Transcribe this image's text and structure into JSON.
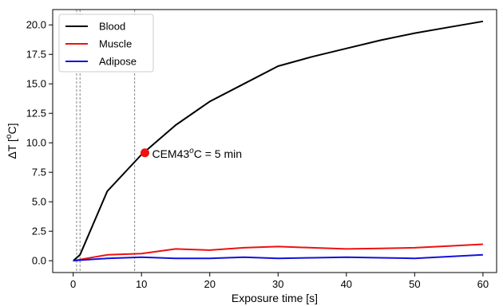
{
  "chart_data": {
    "type": "line",
    "xlabel": "Exposure time [s]",
    "ylabel_main": "ΔT [",
    "ylabel_sup": "o",
    "ylabel_tail": "C]",
    "xlim": [
      -3,
      62
    ],
    "ylim": [
      -1.0,
      21.3
    ],
    "xticks": [
      0,
      10,
      20,
      30,
      40,
      50,
      60
    ],
    "yticks": [
      0.0,
      2.5,
      5.0,
      7.5,
      10.0,
      12.5,
      15.0,
      17.5,
      20.0
    ],
    "ytick_labels": [
      "0.0",
      "2.5",
      "5.0",
      "7.5",
      "10.0",
      "12.5",
      "15.0",
      "17.5",
      "20.0"
    ],
    "grid": false,
    "legend_position": "top-left",
    "series": [
      {
        "name": "Blood",
        "color": "#000000",
        "x": [
          0,
          1,
          5,
          10,
          15,
          20,
          25,
          30,
          35,
          40,
          45,
          50,
          55,
          60
        ],
        "y": [
          0,
          0.5,
          5.9,
          9.0,
          11.5,
          13.5,
          15.0,
          16.5,
          17.3,
          18.0,
          18.7,
          19.3,
          19.8,
          20.3
        ]
      },
      {
        "name": "Muscle",
        "color": "#ee1111",
        "x": [
          0,
          1,
          5,
          10,
          15,
          20,
          25,
          30,
          35,
          40,
          45,
          50,
          55,
          60
        ],
        "y": [
          0,
          0.1,
          0.5,
          0.6,
          1.0,
          0.9,
          1.1,
          1.2,
          1.1,
          1.0,
          1.05,
          1.1,
          1.25,
          1.4
        ]
      },
      {
        "name": "Adipose",
        "color": "#1111dd",
        "x": [
          0,
          1,
          5,
          10,
          15,
          20,
          25,
          30,
          35,
          40,
          45,
          50,
          55,
          60
        ],
        "y": [
          0,
          0.05,
          0.2,
          0.3,
          0.2,
          0.2,
          0.3,
          0.2,
          0.25,
          0.3,
          0.25,
          0.2,
          0.35,
          0.5
        ]
      }
    ],
    "vlines": [
      0.5,
      1.0,
      9.0
    ],
    "vline_color": "#888888",
    "annotation": {
      "x": 10.5,
      "y": 9.15,
      "color": "#ee1111",
      "text_main": "CEM43",
      "text_sup": "o",
      "text_tail": "C = 5 min"
    }
  }
}
